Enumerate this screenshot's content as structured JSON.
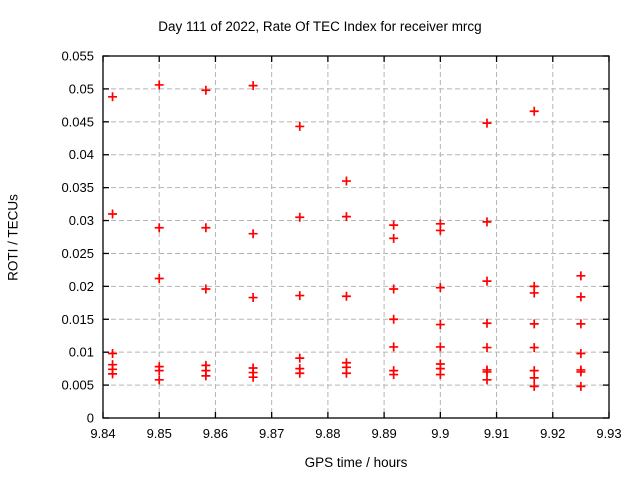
{
  "chart_data": {
    "type": "scatter",
    "title": "Day 111 of 2022, Rate Of TEC Index for receiver mrcg",
    "xlabel": "GPS time / hours",
    "ylabel": "ROTI / TECUs",
    "xlim": [
      9.84,
      9.93
    ],
    "ylim": [
      0,
      0.055
    ],
    "grid": true,
    "legend": "none",
    "marker": {
      "shape": "plus",
      "color": "#ff0000",
      "size": 9
    },
    "frame_color": "#000000",
    "grid_color": "#b5b5b5",
    "xticks": [
      {
        "value": 9.84,
        "label": "9.84"
      },
      {
        "value": 9.85,
        "label": "9.85"
      },
      {
        "value": 9.86,
        "label": "9.86"
      },
      {
        "value": 9.87,
        "label": "9.87"
      },
      {
        "value": 9.88,
        "label": "9.88"
      },
      {
        "value": 9.89,
        "label": "9.89"
      },
      {
        "value": 9.9,
        "label": "9.9"
      },
      {
        "value": 9.91,
        "label": "9.91"
      },
      {
        "value": 9.92,
        "label": "9.92"
      },
      {
        "value": 9.93,
        "label": "9.93"
      }
    ],
    "yticks": [
      {
        "value": 0,
        "label": "0"
      },
      {
        "value": 0.005,
        "label": "0.005"
      },
      {
        "value": 0.01,
        "label": "0.01"
      },
      {
        "value": 0.015,
        "label": "0.015"
      },
      {
        "value": 0.02,
        "label": "0.02"
      },
      {
        "value": 0.025,
        "label": "0.025"
      },
      {
        "value": 0.03,
        "label": "0.03"
      },
      {
        "value": 0.035,
        "label": "0.035"
      },
      {
        "value": 0.04,
        "label": "0.04"
      },
      {
        "value": 0.045,
        "label": "0.045"
      },
      {
        "value": 0.05,
        "label": "0.05"
      },
      {
        "value": 0.055,
        "label": "0.055"
      }
    ],
    "series": [
      {
        "name": "ROTI",
        "points": [
          [
            9.8417,
            0.0488
          ],
          [
            9.8417,
            0.031
          ],
          [
            9.8417,
            0.0098
          ],
          [
            9.8417,
            0.0081
          ],
          [
            9.8417,
            0.0074
          ],
          [
            9.8417,
            0.0067
          ],
          [
            9.85,
            0.0506
          ],
          [
            9.85,
            0.0289
          ],
          [
            9.85,
            0.0212
          ],
          [
            9.85,
            0.0078
          ],
          [
            9.85,
            0.0072
          ],
          [
            9.85,
            0.0058
          ],
          [
            9.8583,
            0.0498
          ],
          [
            9.8583,
            0.0289
          ],
          [
            9.8583,
            0.0196
          ],
          [
            9.8583,
            0.008
          ],
          [
            9.8583,
            0.0072
          ],
          [
            9.8583,
            0.0064
          ],
          [
            9.8667,
            0.0505
          ],
          [
            9.8667,
            0.028
          ],
          [
            9.8667,
            0.0183
          ],
          [
            9.8667,
            0.0076
          ],
          [
            9.8667,
            0.0069
          ],
          [
            9.8667,
            0.0062
          ],
          [
            9.875,
            0.0443
          ],
          [
            9.875,
            0.0305
          ],
          [
            9.875,
            0.0186
          ],
          [
            9.875,
            0.0091
          ],
          [
            9.875,
            0.0075
          ],
          [
            9.875,
            0.0068
          ],
          [
            9.8833,
            0.036
          ],
          [
            9.8833,
            0.0306
          ],
          [
            9.8833,
            0.0185
          ],
          [
            9.8833,
            0.0084
          ],
          [
            9.8833,
            0.0077
          ],
          [
            9.8833,
            0.0068
          ],
          [
            9.8917,
            0.0293
          ],
          [
            9.8917,
            0.0273
          ],
          [
            9.8917,
            0.0196
          ],
          [
            9.8917,
            0.015
          ],
          [
            9.8917,
            0.0108
          ],
          [
            9.8917,
            0.0072
          ],
          [
            9.8917,
            0.0066
          ],
          [
            9.9,
            0.0295
          ],
          [
            9.9,
            0.0285
          ],
          [
            9.9,
            0.0198
          ],
          [
            9.9,
            0.0142
          ],
          [
            9.9,
            0.0108
          ],
          [
            9.9,
            0.0082
          ],
          [
            9.9,
            0.0075
          ],
          [
            9.9,
            0.0066
          ],
          [
            9.9083,
            0.0448
          ],
          [
            9.9083,
            0.0298
          ],
          [
            9.9083,
            0.0208
          ],
          [
            9.9083,
            0.0144
          ],
          [
            9.9083,
            0.0107
          ],
          [
            9.9083,
            0.0073
          ],
          [
            9.9083,
            0.007
          ],
          [
            9.9083,
            0.0058
          ],
          [
            9.9167,
            0.0466
          ],
          [
            9.9167,
            0.02
          ],
          [
            9.9167,
            0.019
          ],
          [
            9.9167,
            0.0143
          ],
          [
            9.9167,
            0.0107
          ],
          [
            9.9167,
            0.0072
          ],
          [
            9.9167,
            0.0061
          ],
          [
            9.9167,
            0.0048
          ],
          [
            9.925,
            0.0216
          ],
          [
            9.925,
            0.0184
          ],
          [
            9.925,
            0.0143
          ],
          [
            9.925,
            0.0098
          ],
          [
            9.925,
            0.0073
          ],
          [
            9.925,
            0.007
          ],
          [
            9.925,
            0.0048
          ]
        ]
      }
    ]
  }
}
